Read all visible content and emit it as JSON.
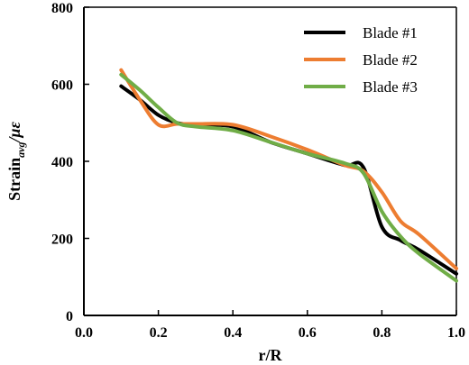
{
  "chart_data": {
    "type": "line",
    "title": "",
    "xlabel": "r/R",
    "ylabel": {
      "prefix": "Strain",
      "subscript": "avg",
      "suffix": "/με"
    },
    "xlim": [
      0.0,
      1.0
    ],
    "ylim": [
      0,
      800
    ],
    "xticks": [
      "0.0",
      "0.2",
      "0.4",
      "0.6",
      "0.8",
      "1.0"
    ],
    "yticks": [
      "0",
      "200",
      "400",
      "600",
      "800"
    ],
    "grid": false,
    "legend_position": "top-right",
    "series": [
      {
        "name": "Blade #1",
        "color": "#000000",
        "x": [
          0.1,
          0.15,
          0.2,
          0.25,
          0.3,
          0.4,
          0.5,
          0.6,
          0.7,
          0.75,
          0.8,
          0.85,
          0.9,
          1.0
        ],
        "y": [
          595,
          560,
          520,
          500,
          495,
          490,
          450,
          420,
          390,
          385,
          230,
          195,
          170,
          108
        ]
      },
      {
        "name": "Blade #2",
        "color": "#ED7D31",
        "x": [
          0.1,
          0.15,
          0.2,
          0.25,
          0.3,
          0.4,
          0.5,
          0.6,
          0.7,
          0.75,
          0.8,
          0.85,
          0.9,
          1.0
        ],
        "y": [
          637,
          560,
          495,
          497,
          497,
          495,
          465,
          430,
          390,
          375,
          320,
          245,
          210,
          122
        ]
      },
      {
        "name": "Blade #3",
        "color": "#70AD47",
        "x": [
          0.1,
          0.15,
          0.2,
          0.25,
          0.3,
          0.4,
          0.5,
          0.6,
          0.7,
          0.75,
          0.8,
          0.85,
          0.9,
          1.0
        ],
        "y": [
          625,
          585,
          540,
          500,
          490,
          480,
          450,
          420,
          395,
          370,
          270,
          205,
          160,
          90
        ]
      }
    ]
  }
}
